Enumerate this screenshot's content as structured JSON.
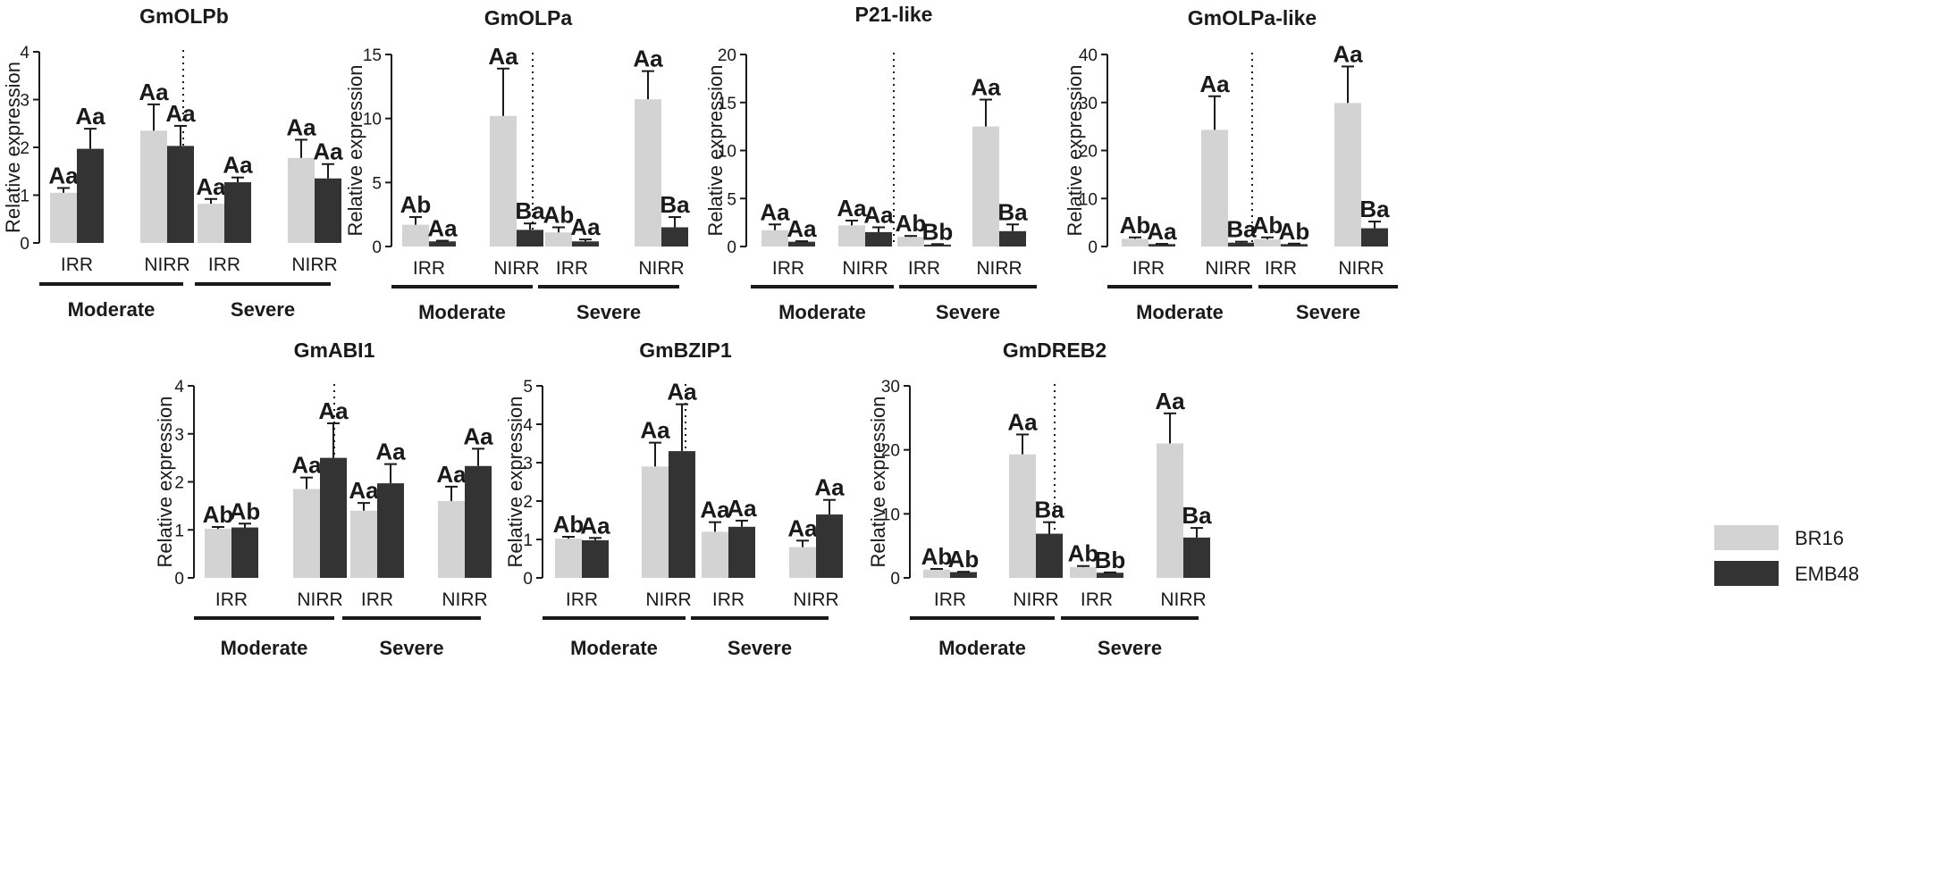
{
  "legend": {
    "items": [
      {
        "label": "BR16",
        "color": "#d3d3d3"
      },
      {
        "label": "EMB48",
        "color": "#333333"
      }
    ]
  },
  "colors": {
    "BR16": "#d3d3d3",
    "EMB48": "#333333",
    "axis": "#1a1a1a"
  },
  "chart_data": [
    {
      "type": "bar",
      "title": "GmOLPb",
      "ylabel": "Relative expression",
      "ylim": [
        0,
        4
      ],
      "yticks": [
        "0",
        "1",
        "2",
        "3",
        "4"
      ],
      "groups": [
        "Moderate",
        "Severe"
      ],
      "categories": [
        "IRR",
        "NIRR",
        "IRR",
        "NIRR"
      ],
      "series": [
        {
          "name": "BR16",
          "values": [
            1.05,
            2.35,
            0.82,
            1.78
          ],
          "errors": [
            0.1,
            0.55,
            0.1,
            0.38
          ],
          "labels": [
            "Aa",
            "Aa",
            "Aa",
            "Aa"
          ]
        },
        {
          "name": "EMB48",
          "values": [
            1.97,
            2.03,
            1.27,
            1.35
          ],
          "errors": [
            0.42,
            0.42,
            0.1,
            0.3
          ],
          "labels": [
            "Aa",
            "Aa",
            "Aa",
            "Aa"
          ]
        }
      ]
    },
    {
      "type": "bar",
      "title": "GmOLPa",
      "ylabel": "Relative expression",
      "ylim": [
        0,
        15
      ],
      "yticks": [
        "0",
        "5",
        "10",
        "15"
      ],
      "groups": [
        "Moderate",
        "Severe"
      ],
      "categories": [
        "IRR",
        "NIRR",
        "IRR",
        "NIRR"
      ],
      "series": [
        {
          "name": "BR16",
          "values": [
            1.7,
            10.2,
            1.1,
            11.5
          ],
          "errors": [
            0.6,
            3.7,
            0.4,
            2.2
          ],
          "labels": [
            "Ab",
            "Aa",
            "Ab",
            "Aa"
          ]
        },
        {
          "name": "EMB48",
          "values": [
            0.4,
            1.3,
            0.4,
            1.5
          ],
          "errors": [
            0.05,
            0.5,
            0.15,
            0.8
          ],
          "labels": [
            "Aa",
            "Ba",
            "Aa",
            "Ba"
          ]
        }
      ]
    },
    {
      "type": "bar",
      "title": "P21-like",
      "ylabel": "Relative expression",
      "ylim": [
        0,
        20
      ],
      "yticks": [
        "0",
        "5",
        "10",
        "15",
        "20"
      ],
      "groups": [
        "Moderate",
        "Severe"
      ],
      "categories": [
        "IRR",
        "NIRR",
        "IRR",
        "NIRR"
      ],
      "series": [
        {
          "name": "BR16",
          "values": [
            1.7,
            2.2,
            1.0,
            12.5
          ],
          "errors": [
            0.6,
            0.5,
            0.1,
            2.8
          ],
          "labels": [
            "Aa",
            "Aa",
            "Ab",
            "Aa"
          ]
        },
        {
          "name": "EMB48",
          "values": [
            0.5,
            1.5,
            0.2,
            1.6
          ],
          "errors": [
            0.05,
            0.5,
            0.05,
            0.7
          ],
          "labels": [
            "Aa",
            "Aa",
            "Bb",
            "Ba"
          ]
        }
      ]
    },
    {
      "type": "bar",
      "title": "GmOLPa-like",
      "ylabel": "Relative expression",
      "ylim": [
        0,
        40
      ],
      "yticks": [
        "0",
        "10",
        "20",
        "30",
        "40"
      ],
      "groups": [
        "Moderate",
        "Severe"
      ],
      "categories": [
        "IRR",
        "NIRR",
        "IRR",
        "NIRR"
      ],
      "series": [
        {
          "name": "BR16",
          "values": [
            1.6,
            24.3,
            1.5,
            29.9
          ],
          "errors": [
            0.3,
            7.0,
            0.4,
            7.6
          ],
          "labels": [
            "Ab",
            "Aa",
            "Ab",
            "Aa"
          ]
        },
        {
          "name": "EMB48",
          "values": [
            0.5,
            0.8,
            0.5,
            3.8
          ],
          "errors": [
            0.05,
            0.2,
            0.1,
            1.4
          ],
          "labels": [
            "Aa",
            "Ba",
            "Ab",
            "Ba"
          ]
        }
      ]
    },
    {
      "type": "bar",
      "title": "GmABI1",
      "ylabel": "Relative expression",
      "ylim": [
        0,
        4
      ],
      "yticks": [
        "0",
        "1",
        "2",
        "3",
        "4"
      ],
      "groups": [
        "Moderate",
        "Severe"
      ],
      "categories": [
        "IRR",
        "NIRR",
        "IRR",
        "NIRR"
      ],
      "series": [
        {
          "name": "BR16",
          "values": [
            1.02,
            1.85,
            1.4,
            1.6
          ],
          "errors": [
            0.04,
            0.24,
            0.16,
            0.3
          ],
          "labels": [
            "Ab",
            "Aa",
            "Aa",
            "Aa"
          ]
        },
        {
          "name": "EMB48",
          "values": [
            1.05,
            2.5,
            1.97,
            2.33
          ],
          "errors": [
            0.08,
            0.72,
            0.4,
            0.36
          ],
          "labels": [
            "Ab",
            "Aa",
            "Aa",
            "Aa"
          ]
        }
      ]
    },
    {
      "type": "bar",
      "title": "GmBZIP1",
      "ylabel": "Relative expression",
      "ylim": [
        0,
        5
      ],
      "yticks": [
        "0",
        "1",
        "2",
        "3",
        "4",
        "5"
      ],
      "groups": [
        "Moderate",
        "Severe"
      ],
      "categories": [
        "IRR",
        "NIRR",
        "IRR",
        "NIRR"
      ],
      "series": [
        {
          "name": "BR16",
          "values": [
            1.02,
            2.9,
            1.2,
            0.8
          ],
          "errors": [
            0.05,
            0.62,
            0.25,
            0.17
          ],
          "labels": [
            "Ab",
            "Aa",
            "Aa",
            "Aa"
          ]
        },
        {
          "name": "EMB48",
          "values": [
            0.98,
            3.3,
            1.33,
            1.65
          ],
          "errors": [
            0.06,
            1.22,
            0.16,
            0.38
          ],
          "labels": [
            "Aa",
            "Aa",
            "Aa",
            "Aa"
          ]
        }
      ]
    },
    {
      "type": "bar",
      "title": "GmDREB2",
      "ylabel": "Relative expression",
      "ylim": [
        0,
        30
      ],
      "yticks": [
        "0",
        "10",
        "20",
        "30"
      ],
      "groups": [
        "Moderate",
        "Severe"
      ],
      "categories": [
        "IRR",
        "NIRR",
        "IRR",
        "NIRR"
      ],
      "series": [
        {
          "name": "BR16",
          "values": [
            1.3,
            19.3,
            1.7,
            21.0
          ],
          "errors": [
            0.1,
            3.1,
            0.15,
            4.7
          ],
          "labels": [
            "Ab",
            "Aa",
            "Ab",
            "Aa"
          ]
        },
        {
          "name": "EMB48",
          "values": [
            0.9,
            6.9,
            0.8,
            6.3
          ],
          "errors": [
            0.05,
            1.8,
            0.05,
            1.5
          ],
          "labels": [
            "Ab",
            "Ba",
            "Bb",
            "Ba"
          ]
        }
      ]
    }
  ]
}
